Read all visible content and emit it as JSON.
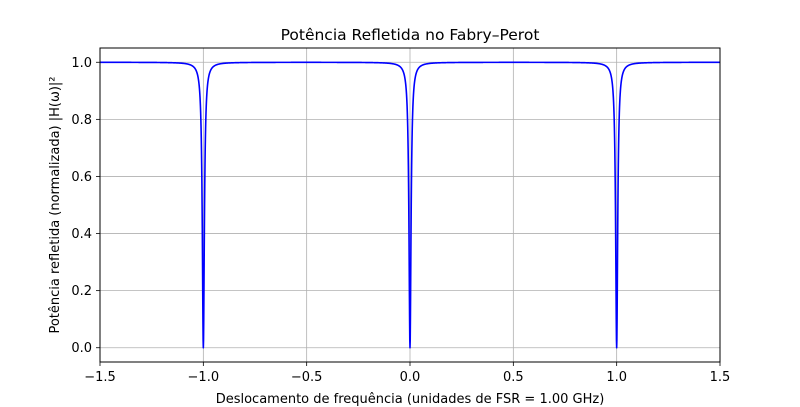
{
  "chart_data": {
    "type": "line",
    "title": "Potência Refletida no Fabry–Perot",
    "xlabel": "Deslocamento de frequência (unidades de FSR = 1.00 GHz)",
    "ylabel": "Potência refletida (normalizada) |H(ω)|²",
    "xlim": [
      -1.5,
      1.5
    ],
    "ylim": [
      -0.05,
      1.05
    ],
    "xticks": [
      -1.5,
      -1.0,
      -0.5,
      0.0,
      0.5,
      1.0,
      1.5
    ],
    "xtick_labels": [
      "−1.5",
      "−1.0",
      "−0.5",
      "0.0",
      "0.5",
      "1.0",
      "1.5"
    ],
    "yticks": [
      0.0,
      0.2,
      0.4,
      0.6,
      0.8,
      1.0
    ],
    "ytick_labels": [
      "0.0",
      "0.2",
      "0.4",
      "0.6",
      "0.8",
      "1.0"
    ],
    "grid": true,
    "line_color": "#0000ff",
    "dip_positions": [
      -1.0,
      0.0,
      1.0
    ],
    "dip_half_width": 0.006,
    "series": [
      {
        "x": [
          -1.5,
          -1.2,
          -1.1,
          -1.06,
          -1.04,
          -1.03,
          -1.02,
          -1.015,
          -1.01,
          -1.005,
          -1.0,
          -0.995,
          -0.99,
          -0.985,
          -0.98,
          -0.97,
          -0.96,
          -0.94,
          -0.9,
          -0.8,
          -0.5,
          -0.2,
          -0.1,
          -0.06,
          -0.04,
          -0.03,
          -0.02,
          -0.015,
          -0.01,
          -0.005,
          0.0,
          0.005,
          0.01,
          0.015,
          0.02,
          0.03,
          0.04,
          0.06,
          0.1,
          0.2,
          0.5,
          0.8,
          0.9,
          0.94,
          0.96,
          0.97,
          0.98,
          0.985,
          0.99,
          0.995,
          1.0,
          1.005,
          1.01,
          1.015,
          1.02,
          1.03,
          1.04,
          1.06,
          1.1,
          1.2,
          1.5
        ],
        "y": [
          1.0,
          0.999,
          0.996,
          0.99,
          0.978,
          0.962,
          0.917,
          0.862,
          0.735,
          0.41,
          0.0,
          0.41,
          0.735,
          0.862,
          0.917,
          0.962,
          0.978,
          0.99,
          0.996,
          0.999,
          1.0,
          0.999,
          0.996,
          0.99,
          0.978,
          0.962,
          0.917,
          0.862,
          0.735,
          0.41,
          0.0,
          0.41,
          0.735,
          0.862,
          0.917,
          0.962,
          0.978,
          0.99,
          0.996,
          0.999,
          1.0,
          0.999,
          0.996,
          0.99,
          0.978,
          0.962,
          0.917,
          0.862,
          0.735,
          0.41,
          0.0,
          0.41,
          0.735,
          0.862,
          0.917,
          0.962,
          0.978,
          0.99,
          0.996,
          0.999,
          1.0
        ]
      }
    ]
  }
}
